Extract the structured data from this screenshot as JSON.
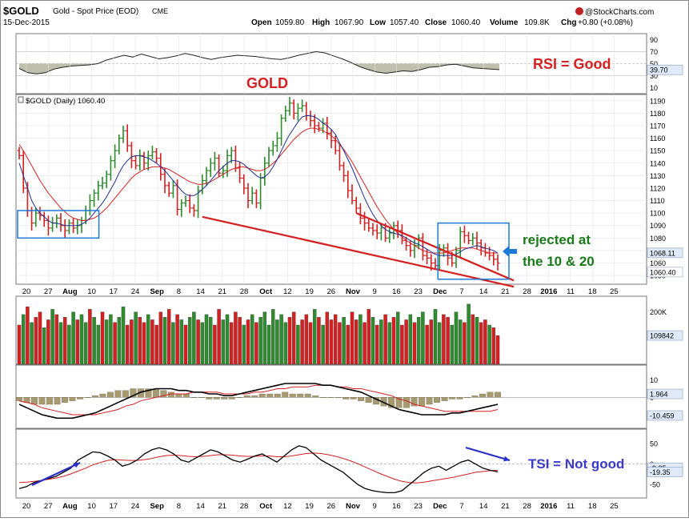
{
  "header": {
    "symbol": "$GOLD",
    "description": "Gold - Spot Price (EOD)",
    "exchange": "CME",
    "date": "15-Dec-2015",
    "brand": "@StockCharts.com",
    "stats": {
      "open_label": "Open",
      "open": "1059.80",
      "high_label": "High",
      "high": "1067.90",
      "low_label": "Low",
      "low": "1057.40",
      "close_label": "Close",
      "close": "1060.40",
      "volume_label": "Volume",
      "volume": "109.8K",
      "chg_label": "Chg",
      "chg": "+0.80 (+0.08%)"
    }
  },
  "annotations": {
    "rsi": "RSI = Good",
    "gold": "GOLD",
    "rejected_line1": "rejected at",
    "rejected_line2": "the 10 & 20",
    "tsi": "TSI = Not good"
  },
  "colors": {
    "up": "#2e8b2e",
    "down": "#d42020",
    "ma_fast": "#1f2f8f",
    "ma_slow": "#d42020",
    "annotation_red": "#d42020",
    "annotation_green": "#1a7a1a",
    "annotation_blue": "#3a3ac8",
    "box": "#1e7ad8",
    "panel_bg": "#ffffff",
    "grid": "#e4e4e4",
    "label_bg": "#dfe9f7"
  },
  "chart_data": [
    {
      "type": "line",
      "name": "RSI",
      "legend": "",
      "y_ticks": [
        "90",
        "70",
        "50",
        "30",
        "10"
      ],
      "last_value": "39.70",
      "values": [
        42,
        35,
        33,
        35,
        41,
        44,
        46,
        47,
        48,
        50,
        56,
        60,
        64,
        61,
        66,
        62,
        58,
        60,
        63,
        67,
        64,
        60,
        57,
        60,
        62,
        64,
        63,
        62,
        60,
        58,
        57,
        60,
        64,
        67,
        70,
        68,
        63,
        58,
        52,
        45,
        40,
        36,
        34,
        36,
        38,
        37,
        40,
        44,
        45,
        48,
        49,
        46,
        43,
        42,
        41,
        40
      ]
    },
    {
      "type": "candlestick",
      "name": "$GOLD (Daily)",
      "legend": "$GOLD (Daily) 1060.40",
      "y_ticks": [
        "1190",
        "1180",
        "1170",
        "1160",
        "1150",
        "1140",
        "1130",
        "1120",
        "1110",
        "1100",
        "1090",
        "1080",
        "1070",
        "1060",
        "1050"
      ],
      "ylim": [
        1043,
        1195
      ],
      "x_tick_labels": [
        "20",
        "27",
        "Aug",
        "10",
        "17",
        "24",
        "Sep",
        "8",
        "14",
        "21",
        "28",
        "Oct",
        "12",
        "19",
        "26",
        "Nov",
        "9",
        "16",
        "23",
        "Dec",
        "7",
        "14",
        "21",
        "28",
        "2016",
        "11",
        "18",
        "25"
      ],
      "price_labels": {
        "ma_value": "1068.11",
        "last_price": "1060.40"
      },
      "close": [
        1146,
        1120,
        1102,
        1092,
        1100,
        1098,
        1094,
        1088,
        1092,
        1096,
        1090,
        1086,
        1092,
        1088,
        1090,
        1094,
        1102,
        1110,
        1116,
        1122,
        1124,
        1131,
        1142,
        1150,
        1160,
        1166,
        1154,
        1142,
        1138,
        1146,
        1140,
        1146,
        1149,
        1144,
        1131,
        1122,
        1116,
        1122,
        1103,
        1108,
        1110,
        1104,
        1102,
        1118,
        1126,
        1134,
        1140,
        1144,
        1132,
        1134,
        1146,
        1150,
        1136,
        1128,
        1120,
        1110,
        1116,
        1108,
        1128,
        1140,
        1150,
        1154,
        1160,
        1176,
        1182,
        1188,
        1180,
        1184,
        1186,
        1178,
        1174,
        1170,
        1168,
        1172,
        1164,
        1158,
        1150,
        1138,
        1130,
        1118,
        1110,
        1104,
        1096,
        1092,
        1088,
        1086,
        1084,
        1088,
        1080,
        1084,
        1090,
        1086,
        1078,
        1074,
        1070,
        1074,
        1080,
        1066,
        1064,
        1060,
        1058,
        1070,
        1072,
        1064,
        1060,
        1070,
        1085,
        1082,
        1078,
        1080,
        1076,
        1072,
        1068,
        1066,
        1063,
        1060
      ],
      "ma10": [
        1140,
        1130,
        1120,
        1110,
        1104,
        1100,
        1097,
        1094,
        1092,
        1092,
        1091,
        1090,
        1090,
        1090,
        1090,
        1091,
        1093,
        1096,
        1100,
        1104,
        1108,
        1113,
        1119,
        1125,
        1132,
        1138,
        1142,
        1145,
        1146,
        1146,
        1145,
        1144,
        1142,
        1140,
        1137,
        1134,
        1130,
        1126,
        1122,
        1118,
        1115,
        1114,
        1114,
        1116,
        1119,
        1122,
        1126,
        1130,
        1134,
        1137,
        1140,
        1142,
        1142,
        1141,
        1139,
        1136,
        1133,
        1130,
        1128,
        1129,
        1132,
        1137,
        1143,
        1150,
        1157,
        1163,
        1168,
        1173,
        1177,
        1178,
        1178,
        1177,
        1175,
        1172,
        1170,
        1167,
        1163,
        1156,
        1150,
        1143,
        1136,
        1128,
        1120,
        1112,
        1105,
        1099,
        1094,
        1090,
        1087,
        1085,
        1084,
        1083,
        1082,
        1080,
        1078,
        1076,
        1075,
        1073,
        1071,
        1069,
        1067,
        1066,
        1066,
        1066,
        1066,
        1067,
        1069,
        1071,
        1072,
        1073,
        1074,
        1073,
        1072,
        1071,
        1070,
        1068
      ],
      "ma20": [
        1155,
        1150,
        1144,
        1138,
        1132,
        1126,
        1121,
        1116,
        1112,
        1108,
        1104,
        1101,
        1098,
        1096,
        1095,
        1094,
        1094,
        1095,
        1096,
        1098,
        1101,
        1104,
        1108,
        1112,
        1116,
        1120,
        1124,
        1128,
        1131,
        1133,
        1135,
        1136,
        1137,
        1137,
        1137,
        1136,
        1135,
        1133,
        1131,
        1129,
        1127,
        1125,
        1124,
        1123,
        1123,
        1124,
        1125,
        1127,
        1129,
        1131,
        1133,
        1135,
        1136,
        1137,
        1137,
        1136,
        1135,
        1134,
        1134,
        1135,
        1137,
        1140,
        1143,
        1147,
        1151,
        1155,
        1159,
        1162,
        1165,
        1167,
        1168,
        1168,
        1167,
        1166,
        1164,
        1162,
        1159,
        1155,
        1151,
        1146,
        1141,
        1135,
        1129,
        1123,
        1117,
        1111,
        1105,
        1100,
        1095,
        1091,
        1087,
        1084,
        1081,
        1078,
        1076,
        1074,
        1072,
        1070,
        1069,
        1068,
        1068,
        1068,
        1068,
        1069,
        1070,
        1071,
        1072,
        1072,
        1072,
        1072,
        1071,
        1070,
        1069,
        1068,
        1068,
        1068
      ],
      "channel_lines": [
        {
          "from": [
            44,
            1097
          ],
          "to": [
            115,
            1041
          ]
        },
        {
          "from": [
            81,
            1100
          ],
          "to": [
            115,
            1046
          ]
        }
      ]
    },
    {
      "type": "bar",
      "name": "Volume",
      "y_ticks": [
        "200K"
      ],
      "last_value": "109842",
      "values": [
        150,
        190,
        220,
        160,
        180,
        200,
        140,
        170,
        210,
        190,
        160,
        180,
        150,
        200,
        170,
        190,
        160,
        210,
        180,
        150,
        200,
        170,
        190,
        160,
        180,
        220,
        150,
        170,
        200,
        180,
        160,
        190,
        170,
        150,
        200,
        180,
        210,
        160,
        190,
        170,
        150,
        180,
        200,
        170,
        160,
        190,
        180,
        150,
        210,
        170,
        190,
        160,
        200,
        180,
        150,
        170,
        190,
        160,
        180,
        200,
        150,
        210,
        170,
        190,
        160,
        180,
        200,
        150,
        170,
        190,
        160,
        210,
        180,
        150,
        200,
        170,
        190,
        160,
        180,
        150,
        200,
        170,
        190,
        160,
        210,
        180,
        150,
        170,
        190,
        160,
        180,
        200,
        150,
        170,
        190,
        160,
        180,
        200,
        150,
        170,
        210,
        160,
        190,
        180,
        150,
        200,
        170,
        160,
        230,
        190,
        180,
        160,
        170,
        150,
        140,
        110
      ],
      "up_flags": [
        0,
        1,
        0,
        1,
        0,
        0,
        1,
        0,
        1,
        0,
        1,
        0,
        1,
        1,
        0,
        1,
        1,
        0,
        1,
        1,
        0,
        1,
        1,
        0,
        1,
        1,
        0,
        0,
        1,
        0,
        0,
        1,
        0,
        0,
        0,
        1,
        0,
        1,
        0,
        1,
        0,
        1,
        1,
        0,
        1,
        1,
        1,
        0,
        0,
        1,
        1,
        0,
        0,
        0,
        1,
        0,
        1,
        0,
        1,
        1,
        1,
        1,
        1,
        1,
        1,
        0,
        0,
        1,
        0,
        0,
        0,
        1,
        0,
        1,
        0,
        0,
        0,
        0,
        1,
        0,
        0,
        0,
        1,
        0,
        0,
        1,
        0,
        1,
        0,
        1,
        0,
        1,
        0,
        0,
        1,
        0,
        1,
        1,
        0,
        0,
        1,
        1,
        0,
        0,
        1,
        1,
        1,
        0,
        1,
        0,
        1,
        0,
        0,
        1,
        0,
        0
      ]
    },
    {
      "type": "line",
      "name": "MACD",
      "y_ticks": [
        "10",
        "0"
      ],
      "last_values": [
        "1.964",
        "-10.459"
      ],
      "macd": [
        -4,
        -6,
        -8,
        -10,
        -11,
        -12,
        -12,
        -12,
        -11,
        -10,
        -9,
        -7,
        -5,
        -3,
        -1,
        1,
        3,
        4,
        5,
        5,
        5,
        4,
        4,
        3,
        3,
        2,
        2,
        1,
        1,
        2,
        3,
        4,
        5,
        6,
        7,
        8,
        8,
        8,
        8,
        8,
        7,
        7,
        6,
        5,
        4,
        3,
        1,
        -1,
        -3,
        -5,
        -7,
        -8,
        -9,
        -10,
        -10,
        -10,
        -10,
        -9,
        -9,
        -8,
        -7,
        -6,
        -5,
        -4
      ],
      "signal": [
        -2,
        -3,
        -4,
        -6,
        -7,
        -8,
        -9,
        -10,
        -10,
        -10,
        -10,
        -9,
        -8,
        -7,
        -5,
        -4,
        -2,
        -1,
        0,
        1,
        2,
        2,
        2,
        3,
        3,
        3,
        3,
        2,
        2,
        2,
        2,
        3,
        3,
        4,
        5,
        5,
        6,
        6,
        6,
        7,
        7,
        7,
        6,
        6,
        5,
        5,
        4,
        3,
        2,
        1,
        -1,
        -2,
        -4,
        -5,
        -6,
        -7,
        -8,
        -8,
        -8,
        -8,
        -8,
        -8,
        -8,
        -7
      ],
      "histogram": [
        -2,
        -3,
        -4,
        -4,
        -4,
        -4,
        -3,
        -2,
        -1,
        0,
        1,
        2,
        3,
        4,
        4,
        5,
        5,
        5,
        5,
        4,
        3,
        2,
        2,
        0,
        0,
        -1,
        -1,
        -1,
        -1,
        0,
        1,
        1,
        2,
        2,
        2,
        3,
        2,
        2,
        2,
        1,
        0,
        0,
        0,
        -1,
        -1,
        -2,
        -3,
        -4,
        -5,
        -6,
        -6,
        -6,
        -5,
        -5,
        -4,
        -3,
        -2,
        -1,
        -1,
        0,
        1,
        2,
        3,
        3
      ]
    },
    {
      "type": "line",
      "name": "TSI",
      "y_ticks": [
        "50",
        "0",
        "-50"
      ],
      "last_values": [
        "-9.35",
        "-19.35"
      ],
      "tsi": [
        -60,
        -55,
        -45,
        -40,
        -35,
        -30,
        -20,
        -10,
        10,
        20,
        30,
        28,
        20,
        10,
        -5,
        0,
        10,
        25,
        35,
        40,
        35,
        25,
        10,
        5,
        15,
        25,
        35,
        30,
        20,
        10,
        5,
        12,
        20,
        25,
        15,
        5,
        20,
        35,
        45,
        40,
        25,
        10,
        0,
        -10,
        -20,
        -35,
        -50,
        -60,
        -65,
        -68,
        -70,
        -70,
        -65,
        -50,
        -35,
        -20,
        -10,
        -5,
        -15,
        -5,
        5,
        10,
        0,
        -10,
        -15,
        -19
      ],
      "signal": [
        -45,
        -44,
        -42,
        -40,
        -37,
        -34,
        -30,
        -24,
        -17,
        -10,
        -2,
        4,
        9,
        11,
        10,
        9,
        9,
        11,
        14,
        18,
        21,
        22,
        21,
        19,
        18,
        19,
        21,
        23,
        23,
        22,
        20,
        19,
        19,
        20,
        20,
        18,
        18,
        20,
        23,
        26,
        27,
        26,
        23,
        19,
        14,
        8,
        1,
        -7,
        -15,
        -23,
        -30,
        -37,
        -42,
        -45,
        -46,
        -44,
        -41,
        -38,
        -35,
        -32,
        -28,
        -24,
        -20,
        -18,
        -16,
        -15
      ]
    }
  ]
}
